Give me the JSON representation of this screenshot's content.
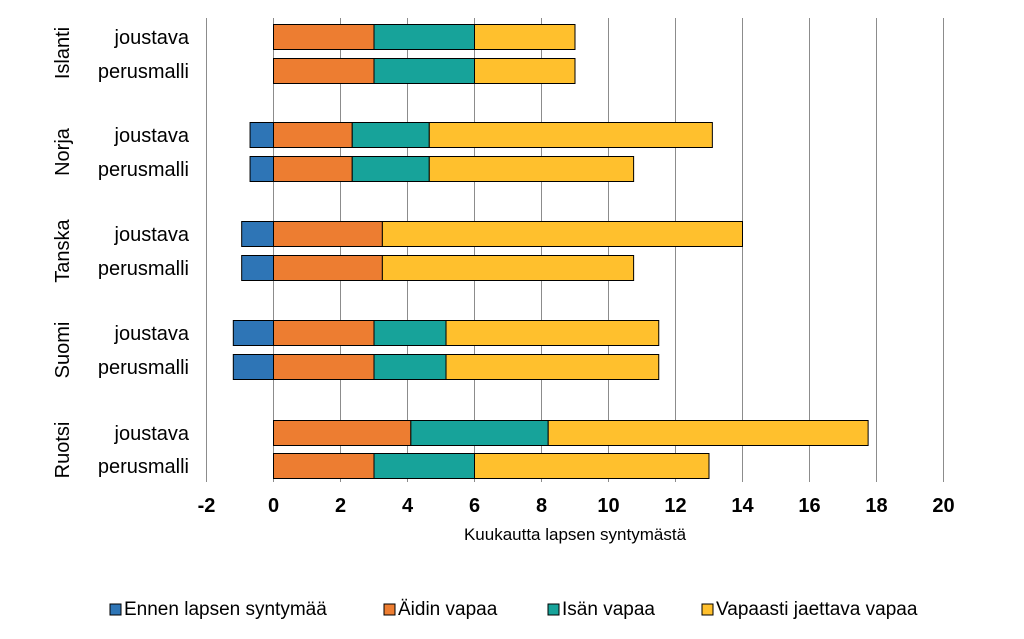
{
  "chart_data": {
    "type": "bar",
    "orientation": "horizontal",
    "stacked": true,
    "xlabel": "Kuukautta lapsen syntymästä",
    "xlim": [
      -2,
      20
    ],
    "xticks": [
      "-2",
      "0",
      "2",
      "4",
      "6",
      "8",
      "10",
      "12",
      "14",
      "16",
      "18",
      "20"
    ],
    "grid": true,
    "legend_position": "bottom",
    "series": [
      {
        "name": "Ennen lapsen syntymää",
        "color": "#2E75B6"
      },
      {
        "name": "Äidin vapaa",
        "color": "#ED7D31"
      },
      {
        "name": "Isän vapaa",
        "color": "#17A39A"
      },
      {
        "name": "Vapaasti jaettava vapaa",
        "color": "#FFC02D"
      }
    ],
    "groups": [
      {
        "name": "Islanti",
        "rows": [
          {
            "label": "joustava",
            "values": [
              0,
              3,
              3,
              3
            ]
          },
          {
            "label": "perusmalli",
            "values": [
              0,
              3,
              3,
              3
            ]
          }
        ]
      },
      {
        "name": "Norja",
        "rows": [
          {
            "label": "joustava",
            "values": [
              0.7,
              2.35,
              2.3,
              8.45
            ]
          },
          {
            "label": "perusmalli",
            "values": [
              0.7,
              2.35,
              2.3,
              6.1
            ]
          }
        ]
      },
      {
        "name": "Tanska",
        "rows": [
          {
            "label": "joustava",
            "values": [
              0.95,
              3.25,
              0,
              10.75
            ]
          },
          {
            "label": "perusmalli",
            "values": [
              0.95,
              3.25,
              0,
              7.5
            ]
          }
        ]
      },
      {
        "name": "Suomi",
        "rows": [
          {
            "label": "joustava",
            "values": [
              1.2,
              3,
              2.15,
              6.35
            ]
          },
          {
            "label": "perusmalli",
            "values": [
              1.2,
              3,
              2.15,
              6.35
            ]
          }
        ]
      },
      {
        "name": "Ruotsi",
        "rows": [
          {
            "label": "joustava",
            "values": [
              0,
              4.1,
              4.1,
              9.55
            ]
          },
          {
            "label": "perusmalli",
            "values": [
              0,
              3,
              3,
              7
            ]
          }
        ]
      }
    ]
  }
}
